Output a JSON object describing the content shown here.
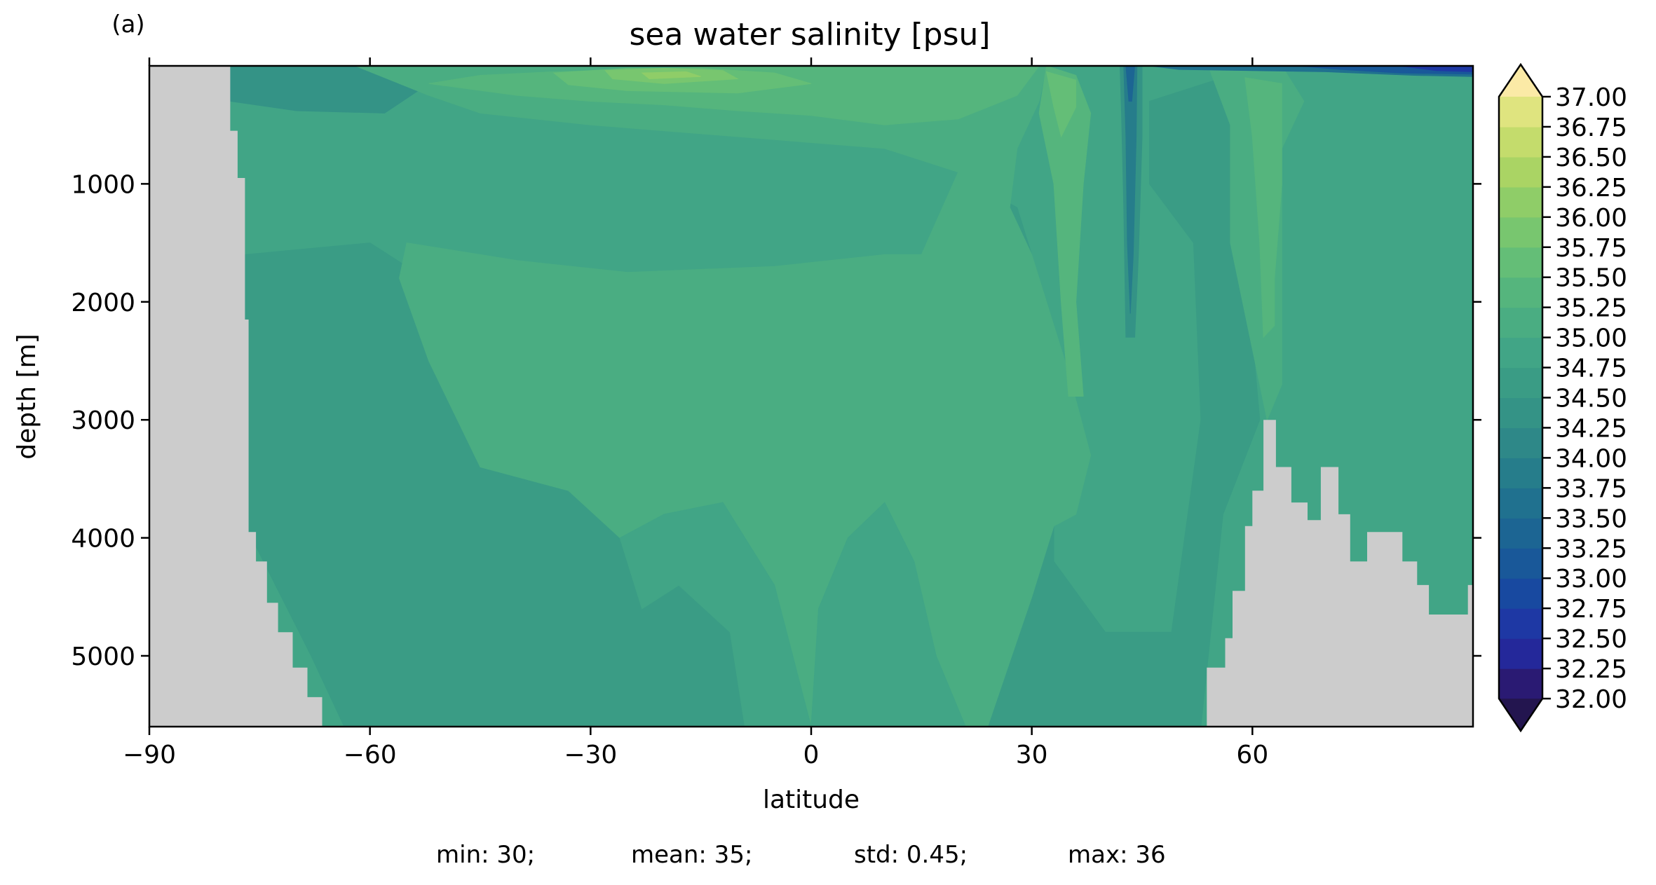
{
  "panel_label": "(a)",
  "chart_data": {
    "type": "heatmap",
    "title": "sea water salinity [psu]",
    "xlabel": "latitude",
    "ylabel": "depth [m]",
    "xlim": [
      -90,
      90
    ],
    "ylim": [
      5600,
      0
    ],
    "y_inverted": true,
    "grid": false,
    "xticks": [
      -90,
      -60,
      -30,
      0,
      30,
      60
    ],
    "xtick_labels": [
      "−90",
      "−60",
      "−30",
      "0",
      "30",
      "60"
    ],
    "yticks": [
      1000,
      2000,
      3000,
      4000,
      5000
    ],
    "ytick_labels": [
      "1000",
      "2000",
      "3000",
      "4000",
      "5000"
    ],
    "colorbar": {
      "levels": [
        32.0,
        32.25,
        32.5,
        32.75,
        33.0,
        33.25,
        33.5,
        33.75,
        34.0,
        34.25,
        34.5,
        34.75,
        35.0,
        35.25,
        35.5,
        35.75,
        36.0,
        36.25,
        36.5,
        36.75,
        37.0
      ],
      "labels": [
        "32.00",
        "32.25",
        "32.50",
        "32.75",
        "33.00",
        "33.25",
        "33.50",
        "33.75",
        "34.00",
        "34.25",
        "34.50",
        "34.75",
        "35.00",
        "35.25",
        "35.50",
        "35.75",
        "36.00",
        "36.25",
        "36.50",
        "36.75",
        "37.00"
      ],
      "colors": [
        "#2a1a73",
        "#24289a",
        "#1e38a4",
        "#1849a0",
        "#195899",
        "#1c6593",
        "#20718f",
        "#267d8b",
        "#2e8888",
        "#349386",
        "#3a9c85",
        "#41a586",
        "#4aad82",
        "#55b57d",
        "#64be77",
        "#78c66f",
        "#8fcd68",
        "#aad464",
        "#c4dc6c",
        "#dfe47f",
        "#f7e8a0"
      ],
      "extend": "both",
      "under_color": "#23154f",
      "over_color": "#fbeaa6"
    },
    "land_color": "#cccccc",
    "seafloor": [
      {
        "lat": -90,
        "depth": 0
      },
      {
        "lat": -79,
        "depth": 0
      },
      {
        "lat": -79,
        "depth": 550
      },
      {
        "lat": -78,
        "depth": 550
      },
      {
        "lat": -78,
        "depth": 950
      },
      {
        "lat": -77,
        "depth": 950
      },
      {
        "lat": -77,
        "depth": 2150
      },
      {
        "lat": -76.5,
        "depth": 2150
      },
      {
        "lat": -76.5,
        "depth": 3950
      },
      {
        "lat": -75.5,
        "depth": 3950
      },
      {
        "lat": -75.5,
        "depth": 4200
      },
      {
        "lat": -74,
        "depth": 4200
      },
      {
        "lat": -74,
        "depth": 4550
      },
      {
        "lat": -72.5,
        "depth": 4550
      },
      {
        "lat": -72.5,
        "depth": 4800
      },
      {
        "lat": -70.5,
        "depth": 4800
      },
      {
        "lat": -70.5,
        "depth": 5100
      },
      {
        "lat": -68.5,
        "depth": 5100
      },
      {
        "lat": -68.5,
        "depth": 5350
      },
      {
        "lat": -66.5,
        "depth": 5350
      },
      {
        "lat": -66.5,
        "depth": 5600
      },
      {
        "lat": -63.5,
        "depth": 5600
      },
      {
        "lat": 53.8,
        "depth": 5600
      },
      {
        "lat": 53.8,
        "depth": 5100
      },
      {
        "lat": 56.3,
        "depth": 5100
      },
      {
        "lat": 56.3,
        "depth": 4850
      },
      {
        "lat": 57.3,
        "depth": 4850
      },
      {
        "lat": 57.3,
        "depth": 4450
      },
      {
        "lat": 59.0,
        "depth": 4450
      },
      {
        "lat": 59.0,
        "depth": 3900
      },
      {
        "lat": 60.0,
        "depth": 3900
      },
      {
        "lat": 60.0,
        "depth": 3600
      },
      {
        "lat": 61.5,
        "depth": 3600
      },
      {
        "lat": 61.5,
        "depth": 3000
      },
      {
        "lat": 63.2,
        "depth": 3000
      },
      {
        "lat": 63.2,
        "depth": 3400
      },
      {
        "lat": 65.3,
        "depth": 3400
      },
      {
        "lat": 65.3,
        "depth": 3700
      },
      {
        "lat": 67.5,
        "depth": 3700
      },
      {
        "lat": 67.5,
        "depth": 3850
      },
      {
        "lat": 69.3,
        "depth": 3850
      },
      {
        "lat": 69.3,
        "depth": 3400
      },
      {
        "lat": 71.7,
        "depth": 3400
      },
      {
        "lat": 71.7,
        "depth": 3800
      },
      {
        "lat": 73.3,
        "depth": 3800
      },
      {
        "lat": 73.3,
        "depth": 4200
      },
      {
        "lat": 75.6,
        "depth": 4200
      },
      {
        "lat": 75.6,
        "depth": 3950
      },
      {
        "lat": 80.4,
        "depth": 3950
      },
      {
        "lat": 80.4,
        "depth": 4200
      },
      {
        "lat": 82.4,
        "depth": 4200
      },
      {
        "lat": 82.4,
        "depth": 4400
      },
      {
        "lat": 84.0,
        "depth": 4400
      },
      {
        "lat": 84.0,
        "depth": 4650
      },
      {
        "lat": 89.3,
        "depth": 4650
      },
      {
        "lat": 89.3,
        "depth": 4400
      },
      {
        "lat": 90,
        "depth": 4400
      },
      {
        "lat": 90,
        "depth": 5600
      },
      {
        "lat": -90,
        "depth": 5600
      }
    ],
    "regions": [
      {
        "salinity": 34.75,
        "coords": [
          [
            -79,
            0
          ],
          [
            90,
            0
          ],
          [
            90,
            5600
          ],
          [
            -79,
            5600
          ]
        ]
      },
      {
        "salinity": 34.25,
        "coords": [
          [
            -79,
            0
          ],
          [
            -62,
            0
          ],
          [
            -52,
            150
          ],
          [
            -58,
            400
          ],
          [
            -70,
            380
          ],
          [
            -79,
            300
          ]
        ]
      },
      {
        "salinity": 34.5,
        "coords": [
          [
            -77,
            1600
          ],
          [
            -60,
            1500
          ],
          [
            -55,
            1700
          ],
          [
            -48,
            1850
          ],
          [
            -35,
            2000
          ],
          [
            -20,
            2050
          ],
          [
            -10,
            1950
          ],
          [
            5,
            1850
          ],
          [
            17,
            1750
          ],
          [
            22,
            1000
          ],
          [
            28,
            1200
          ],
          [
            33,
            2200
          ],
          [
            33,
            4200
          ],
          [
            40,
            4800
          ],
          [
            49,
            4800
          ],
          [
            53,
            3000
          ],
          [
            52,
            1500
          ],
          [
            46,
            1000
          ],
          [
            46,
            300
          ],
          [
            56,
            100
          ],
          [
            62,
            1300
          ],
          [
            60,
            2300
          ],
          [
            61,
            3000
          ],
          [
            56,
            3800
          ],
          [
            53,
            5600
          ],
          [
            -63.5,
            5600
          ],
          [
            -68,
            5000
          ],
          [
            -76.5,
            3950
          ],
          [
            -77,
            2150
          ]
        ]
      },
      {
        "salinity": 35.0,
        "coords": [
          [
            -55,
            1500
          ],
          [
            -40,
            1650
          ],
          [
            -25,
            1750
          ],
          [
            -5,
            1700
          ],
          [
            10,
            1600
          ],
          [
            15,
            1600
          ],
          [
            20,
            900
          ],
          [
            10,
            700
          ],
          [
            -10,
            600
          ],
          [
            -30,
            500
          ],
          [
            -45,
            400
          ],
          [
            -52,
            250
          ],
          [
            -62,
            0
          ],
          [
            32,
            0
          ],
          [
            31,
            300
          ],
          [
            28,
            700
          ],
          [
            27,
            1200
          ],
          [
            30,
            1600
          ],
          [
            35,
            2600
          ],
          [
            38,
            3300
          ],
          [
            36,
            3800
          ],
          [
            33,
            3900
          ],
          [
            30,
            4500
          ],
          [
            24,
            5600
          ],
          [
            -9,
            5600
          ],
          [
            -11,
            4800
          ],
          [
            -18,
            4400
          ],
          [
            -23,
            4600
          ],
          [
            -26,
            4000
          ],
          [
            -33,
            3600
          ],
          [
            -45,
            3400
          ],
          [
            -52,
            2500
          ],
          [
            -56,
            1800
          ]
        ]
      },
      {
        "salinity": 34.75,
        "coords": [
          [
            -26,
            4000
          ],
          [
            -20,
            3800
          ],
          [
            -12,
            3700
          ],
          [
            -5,
            4400
          ],
          [
            0,
            5600
          ],
          [
            -9,
            5600
          ],
          [
            -11,
            4800
          ],
          [
            -18,
            4400
          ],
          [
            -23,
            4600
          ]
        ]
      },
      {
        "salinity": 34.75,
        "coords": [
          [
            5,
            4000
          ],
          [
            10,
            3700
          ],
          [
            14,
            4200
          ],
          [
            17,
            5000
          ],
          [
            21,
            5600
          ],
          [
            0,
            5600
          ],
          [
            1,
            4600
          ]
        ]
      },
      {
        "salinity": 35.0,
        "coords": [
          [
            54,
            0
          ],
          [
            64,
            0
          ],
          [
            67,
            300
          ],
          [
            64,
            700
          ],
          [
            64,
            2700
          ],
          [
            62,
            3000
          ],
          [
            60,
            2400
          ],
          [
            57,
            1500
          ],
          [
            57,
            500
          ]
        ]
      },
      {
        "salinity": 35.25,
        "coords": [
          [
            -52,
            150
          ],
          [
            -45,
            80
          ],
          [
            -35,
            50
          ],
          [
            -20,
            20
          ],
          [
            -10,
            0
          ],
          [
            31,
            0
          ],
          [
            28,
            250
          ],
          [
            20,
            450
          ],
          [
            10,
            500
          ],
          [
            0,
            420
          ],
          [
            -10,
            380
          ],
          [
            -20,
            330
          ],
          [
            -30,
            300
          ],
          [
            -40,
            250
          ]
        ]
      },
      {
        "salinity": 35.25,
        "coords": [
          [
            32,
            0
          ],
          [
            36,
            80
          ],
          [
            38,
            400
          ],
          [
            37,
            1000
          ],
          [
            36,
            2000
          ],
          [
            37,
            2800
          ],
          [
            35,
            2800
          ],
          [
            34,
            2000
          ],
          [
            33,
            1000
          ],
          [
            31,
            400
          ]
        ]
      },
      {
        "salinity": 35.25,
        "coords": [
          [
            59,
            100
          ],
          [
            64,
            150
          ],
          [
            64,
            1000
          ],
          [
            63,
            1800
          ],
          [
            63,
            2200
          ],
          [
            61.5,
            2300
          ],
          [
            61,
            1500
          ],
          [
            60,
            600
          ]
        ]
      },
      {
        "salinity": 35.5,
        "coords": [
          [
            -35,
            60
          ],
          [
            -25,
            20
          ],
          [
            -15,
            20
          ],
          [
            -5,
            60
          ],
          [
            0,
            150
          ],
          [
            -10,
            230
          ],
          [
            -25,
            210
          ],
          [
            -33,
            160
          ]
        ]
      },
      {
        "salinity": 35.5,
        "coords": [
          [
            32,
            50
          ],
          [
            36,
            120
          ],
          [
            36,
            350
          ],
          [
            34,
            600
          ],
          [
            33,
            350
          ]
        ]
      },
      {
        "salinity": 35.75,
        "coords": [
          [
            -28,
            40
          ],
          [
            -20,
            20
          ],
          [
            -12,
            40
          ],
          [
            -10,
            110
          ],
          [
            -20,
            150
          ],
          [
            -27,
            110
          ]
        ]
      },
      {
        "salinity": 36.0,
        "coords": [
          [
            -23,
            60
          ],
          [
            -17,
            50
          ],
          [
            -15,
            90
          ],
          [
            -22,
            110
          ]
        ]
      },
      {
        "salinity": 34.25,
        "coords": [
          [
            42,
            0
          ],
          [
            45,
            0
          ],
          [
            45,
            600
          ],
          [
            44.5,
            1600
          ],
          [
            44,
            2300
          ],
          [
            42.8,
            2300
          ],
          [
            42.5,
            1200
          ],
          [
            42.2,
            400
          ]
        ]
      },
      {
        "salinity": 33.75,
        "coords": [
          [
            42.5,
            0
          ],
          [
            44.3,
            0
          ],
          [
            44.2,
            600
          ],
          [
            43.8,
            1600
          ],
          [
            43.4,
            2100
          ],
          [
            43.0,
            1500
          ],
          [
            42.8,
            600
          ]
        ]
      },
      {
        "salinity": 33.25,
        "coords": [
          [
            42.8,
            0
          ],
          [
            44,
            0
          ],
          [
            43.6,
            300
          ],
          [
            43.2,
            300
          ]
        ]
      },
      {
        "salinity": 33.5,
        "coords": [
          [
            46,
            0
          ],
          [
            90,
            0
          ],
          [
            90,
            90
          ],
          [
            82,
            80
          ],
          [
            70,
            50
          ],
          [
            60,
            40
          ],
          [
            50,
            30
          ]
        ]
      },
      {
        "salinity": 33.0,
        "coords": [
          [
            66,
            0
          ],
          [
            90,
            0
          ],
          [
            90,
            70
          ],
          [
            80,
            60
          ],
          [
            72,
            30
          ]
        ]
      },
      {
        "salinity": 32.5,
        "coords": [
          [
            80,
            0
          ],
          [
            90,
            0
          ],
          [
            90,
            50
          ],
          [
            85,
            40
          ]
        ]
      }
    ]
  },
  "stats": {
    "min": "min: 30;",
    "mean": "mean: 35;",
    "std": "std: 0.45;",
    "max": "max: 36"
  }
}
